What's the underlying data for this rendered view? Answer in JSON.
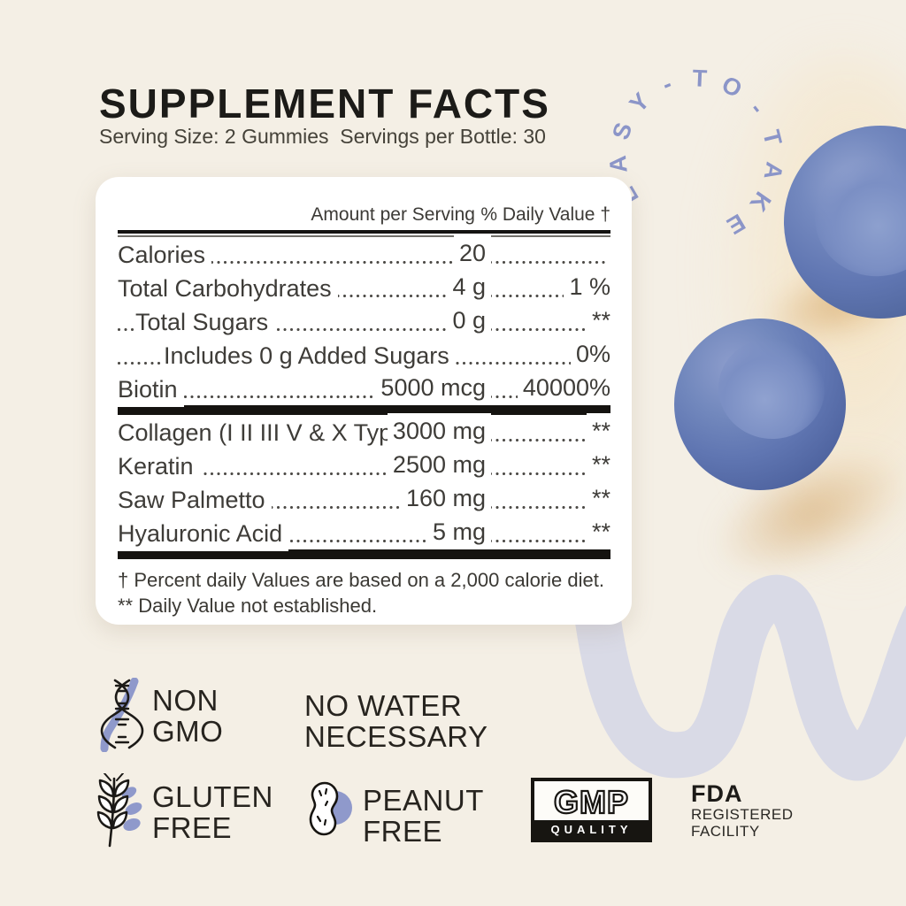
{
  "page": {
    "title": "SUPPLEMENT FACTS",
    "subtitle": "Serving Size: 2 Gummies  Servings per Bottle: 30"
  },
  "easy_to_take": {
    "label": "EASY-TO-TAKE"
  },
  "facts": {
    "col_amount": "Amount per Serving",
    "col_dv": "% Daily Value †",
    "rows": [
      {
        "name": "Calories",
        "amount": "20",
        "dv": ""
      },
      {
        "name": "Total Carbohydrates",
        "amount": "4 g",
        "dv": "1 %"
      },
      {
        "name": "Total Sugars",
        "amount": "0 g",
        "dv": "**"
      },
      {
        "name": "Includes 0 g Added Sugars",
        "amount": "",
        "dv": "0%"
      },
      {
        "name": "Biotin",
        "amount": "5000 mcg",
        "dv": "40000%"
      },
      {
        "name": "Collagen (I II III V & X Types)",
        "amount": "3000 mg",
        "dv": "**"
      },
      {
        "name": "Keratin",
        "amount": "2500 mg",
        "dv": "**"
      },
      {
        "name": "Saw Palmetto",
        "amount": "160 mg",
        "dv": "**"
      },
      {
        "name": "Hyaluronic Acid",
        "amount": "5 mg",
        "dv": "**"
      }
    ],
    "footnotes": [
      "† Percent daily Values are based on a 2,000 calorie diet.",
      "** Daily Value not established."
    ]
  },
  "badges": {
    "non_gmo": {
      "line1": "NON",
      "line2": "GMO"
    },
    "no_water": {
      "line1": "NO WATER",
      "line2": "NECESSARY"
    },
    "gluten_free": {
      "line1": "GLUTEN",
      "line2": "FREE"
    },
    "peanut_free": {
      "line1": "PEANUT",
      "line2": "FREE"
    },
    "gmp": {
      "big": "GMP",
      "small": "QUALITY"
    },
    "fda": {
      "big": "FDA",
      "line1": "REGISTERED",
      "line2": "FACILITY"
    }
  },
  "colors": {
    "background": "#f4efe5",
    "accent_periwinkle": "#8f99cb",
    "arc_text": "#8b95c8",
    "squiggle": "#d9dae6",
    "gummy_blue": "#6076b2",
    "ink": "#1c1b18"
  }
}
